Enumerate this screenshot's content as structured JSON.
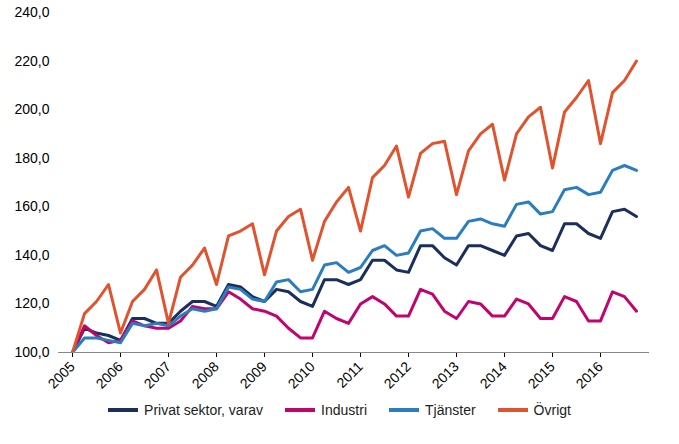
{
  "chart_data": {
    "type": "line",
    "categories": [
      "2005",
      null,
      null,
      null,
      "2006",
      null,
      null,
      null,
      "2007",
      null,
      null,
      null,
      "2008",
      null,
      null,
      null,
      "2009",
      null,
      null,
      null,
      "2010",
      null,
      null,
      null,
      "2011",
      null,
      null,
      null,
      "2012",
      null,
      null,
      null,
      "2013",
      null,
      null,
      null,
      "2014",
      null,
      null,
      null,
      "2015",
      null,
      null,
      null,
      "2016",
      null,
      null,
      null
    ],
    "series": [
      {
        "name": "Privat sektor, varav",
        "color": "#1b2f5c",
        "values": [
          100,
          110,
          108,
          107,
          105,
          114,
          114,
          112,
          112,
          117,
          121,
          121,
          119,
          128,
          127,
          123,
          121,
          126,
          125,
          121,
          119,
          130,
          130,
          128,
          130,
          138,
          138,
          134,
          133,
          144,
          144,
          139,
          136,
          144,
          144,
          142,
          140,
          148,
          149,
          144,
          142,
          153,
          153,
          149,
          147,
          158,
          159,
          156
        ]
      },
      {
        "name": "Industri",
        "color": "#c0056e",
        "values": [
          100,
          111,
          107,
          104,
          105,
          113,
          111,
          110,
          110,
          113,
          119,
          118,
          118,
          125,
          122,
          118,
          117,
          115,
          110,
          106,
          106,
          117,
          114,
          112,
          120,
          123,
          120,
          115,
          115,
          126,
          124,
          117,
          114,
          121,
          120,
          115,
          115,
          122,
          120,
          114,
          114,
          123,
          121,
          113,
          113,
          125,
          123,
          117
        ]
      },
      {
        "name": "Tjänster",
        "color": "#2a7ec0",
        "values": [
          100,
          106,
          106,
          105,
          104,
          112,
          111,
          112,
          111,
          115,
          118,
          117,
          118,
          127,
          126,
          122,
          121,
          129,
          130,
          125,
          126,
          136,
          137,
          133,
          135,
          142,
          144,
          140,
          141,
          150,
          151,
          147,
          147,
          154,
          155,
          153,
          152,
          161,
          162,
          157,
          158,
          167,
          168,
          165,
          166,
          175,
          177,
          175
        ]
      },
      {
        "name": "Övrigt",
        "color": "#e0532f",
        "values": [
          100,
          116,
          121,
          128,
          108,
          121,
          126,
          134,
          112,
          131,
          136,
          143,
          128,
          148,
          150,
          153,
          132,
          150,
          156,
          159,
          138,
          154,
          162,
          168,
          150,
          172,
          177,
          185,
          164,
          182,
          186,
          187,
          165,
          183,
          190,
          194,
          171,
          190,
          197,
          201,
          176,
          199,
          205,
          212,
          186,
          207,
          212,
          220
        ]
      }
    ],
    "ylim": [
      100,
      240
    ],
    "yticks": [
      {
        "value": 100,
        "label": "100,0"
      },
      {
        "value": 120,
        "label": "120,0"
      },
      {
        "value": 140,
        "label": "140,0"
      },
      {
        "value": 160,
        "label": "160,0"
      },
      {
        "value": 180,
        "label": "180,0"
      },
      {
        "value": 200,
        "label": "200,0"
      },
      {
        "value": 220,
        "label": "220,0"
      },
      {
        "value": 240,
        "label": "240,0"
      }
    ],
    "grid": false,
    "legend": "bottom"
  }
}
